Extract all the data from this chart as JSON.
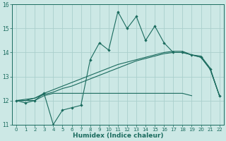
{
  "title": "",
  "xlabel": "Humidex (Indice chaleur)",
  "ylabel": "",
  "background_color": "#cce8e5",
  "grid_color": "#aacfcc",
  "line_color": "#1a6b5e",
  "ylim": [
    11,
    16
  ],
  "xlim": [
    -0.5,
    22.5
  ],
  "yticks": [
    11,
    12,
    13,
    14,
    15,
    16
  ],
  "xticks": [
    0,
    1,
    2,
    3,
    4,
    5,
    6,
    7,
    8,
    9,
    10,
    11,
    12,
    13,
    14,
    15,
    16,
    17,
    18,
    19,
    20,
    21,
    22
  ],
  "series_main": [
    12.0,
    11.9,
    12.0,
    12.3,
    11.0,
    11.6,
    11.7,
    11.8,
    13.7,
    14.4,
    14.1,
    15.7,
    15.0,
    15.5,
    14.5,
    15.1,
    14.4,
    14.0,
    14.0,
    13.9,
    13.8,
    13.3,
    12.2
  ],
  "series_flat": [
    12.0,
    12.0,
    12.0,
    12.2,
    12.3,
    12.3,
    12.3,
    12.3,
    12.3,
    12.3,
    12.3,
    12.3,
    12.3,
    12.3,
    12.3,
    12.3,
    12.3,
    12.3,
    12.3,
    12.2,
    null,
    null,
    null
  ],
  "series_rise1": [
    12.0,
    12.0,
    12.1,
    12.25,
    12.35,
    12.5,
    12.6,
    12.75,
    12.9,
    13.05,
    13.2,
    13.35,
    13.5,
    13.65,
    13.75,
    13.85,
    13.95,
    14.0,
    14.0,
    13.9,
    13.8,
    13.3,
    12.2
  ],
  "series_rise2": [
    12.0,
    12.05,
    12.1,
    12.3,
    12.45,
    12.6,
    12.75,
    12.9,
    13.05,
    13.2,
    13.35,
    13.5,
    13.6,
    13.7,
    13.8,
    13.9,
    14.0,
    14.05,
    14.05,
    13.9,
    13.85,
    13.35,
    12.2
  ]
}
